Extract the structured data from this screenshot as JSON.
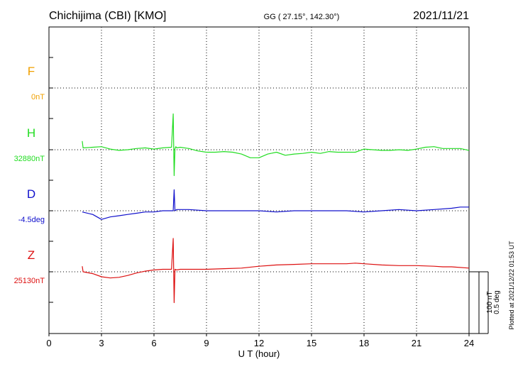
{
  "header": {
    "station": "Chichijima (CBI)  [KMO]",
    "coords": "GG ( 27.15°, 142.30°)",
    "date": "2021/11/21"
  },
  "footer": {
    "xlabel": "U T (hour)",
    "plotted": "Plotted at 2021/12/22 01:53 UT",
    "scale_nt": "100 nT",
    "scale_deg": "0.5 deg"
  },
  "colors": {
    "F": "#f0a000",
    "H": "#22dd22",
    "D": "#1010cc",
    "Z": "#dd1010",
    "axis": "#000000",
    "grid": "#000000"
  },
  "chart_data": {
    "type": "line",
    "title": "Chichijima (CBI)  [KMO]",
    "xlabel": "U T (hour)",
    "ylabel": "",
    "xlim": [
      0,
      24
    ],
    "xticks": [
      0,
      3,
      6,
      9,
      12,
      15,
      18,
      21,
      24
    ],
    "grid": true,
    "scale": {
      "nT_per_bar": 100,
      "deg_per_bar": 0.5
    },
    "series": [
      {
        "name": "F",
        "baseline_label": "0nT",
        "unit": "nT",
        "x": [],
        "values": []
      },
      {
        "name": "H",
        "baseline_label": "32880nT",
        "unit": "nT",
        "x": [
          1.9,
          1.95,
          2.5,
          3.0,
          3.5,
          4.0,
          4.5,
          5.0,
          5.5,
          6.0,
          6.5,
          7.0,
          7.1,
          7.15,
          7.2,
          7.25,
          7.3,
          7.5,
          8.0,
          8.5,
          9.0,
          9.5,
          10.0,
          10.5,
          11.0,
          11.5,
          12.0,
          12.5,
          13.0,
          13.5,
          14.0,
          14.5,
          15.0,
          15.5,
          16.0,
          16.5,
          17.0,
          17.5,
          18.0,
          18.5,
          19.0,
          19.5,
          20.0,
          20.5,
          21.0,
          21.5,
          22.0,
          22.5,
          23.0,
          23.5,
          24.0
        ],
        "values": [
          14,
          3,
          4,
          5,
          1,
          -1,
          0,
          2,
          3,
          1,
          3,
          4,
          58,
          -42,
          2,
          5,
          3,
          4,
          2,
          -2,
          -4,
          -4,
          -3,
          -4,
          -7,
          -13,
          -13,
          -7,
          -4,
          -9,
          -7,
          -6,
          -4,
          -6,
          -3,
          -4,
          -4,
          -4,
          1,
          0,
          -1,
          -1,
          0,
          -1,
          1,
          4,
          5,
          2,
          2,
          2,
          -1
        ]
      },
      {
        "name": "D",
        "baseline_label": "-4.5deg",
        "unit": "deg",
        "x": [
          1.9,
          2.5,
          3.0,
          3.5,
          4.0,
          4.5,
          5.0,
          5.5,
          6.0,
          6.5,
          7.0,
          7.1,
          7.15,
          7.2,
          7.3,
          8.0,
          9.0,
          10.0,
          11.0,
          12.0,
          13.0,
          14.0,
          15.0,
          16.0,
          17.0,
          18.0,
          19.0,
          20.0,
          21.0,
          22.0,
          23.0,
          23.5,
          24.0
        ],
        "values": [
          -0.01,
          -0.03,
          -0.07,
          -0.05,
          -0.04,
          -0.03,
          -0.02,
          -0.01,
          -0.01,
          0.0,
          0.0,
          0.0,
          0.17,
          0.0,
          0.01,
          0.01,
          0.0,
          0.0,
          0.0,
          0.0,
          -0.01,
          0.0,
          0.0,
          0.0,
          0.0,
          -0.01,
          0.0,
          0.01,
          0.0,
          0.01,
          0.02,
          0.03,
          0.03
        ]
      },
      {
        "name": "Z",
        "baseline_label": "25130nT",
        "unit": "nT",
        "x": [
          1.9,
          1.95,
          2.5,
          3.0,
          3.5,
          4.0,
          4.5,
          5.0,
          5.5,
          6.0,
          6.5,
          7.0,
          7.1,
          7.15,
          7.2,
          7.3,
          7.5,
          8.0,
          9.0,
          10.0,
          11.0,
          12.0,
          13.0,
          14.0,
          15.0,
          16.0,
          17.0,
          17.5,
          18.0,
          19.0,
          20.0,
          21.0,
          22.0,
          22.5,
          23.0,
          24.0
        ],
        "values": [
          9,
          0,
          -3,
          -8,
          -10,
          -9,
          -6,
          -2,
          1,
          3,
          4,
          4,
          54,
          -50,
          4,
          3,
          4,
          4,
          4,
          5,
          6,
          9,
          11,
          12,
          13,
          13,
          13,
          14,
          13,
          11,
          10,
          10,
          9,
          8,
          8,
          6
        ]
      }
    ]
  }
}
